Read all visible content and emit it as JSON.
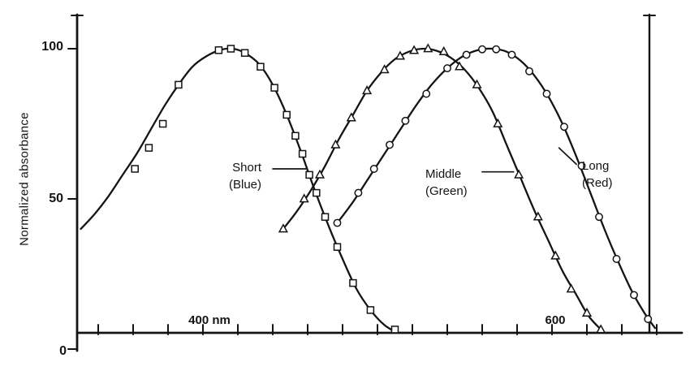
{
  "colors": {
    "ink": "#141414",
    "background": "#ffffff"
  },
  "chart_data": {
    "type": "line",
    "description": "Normalized absorbance spectra of three cone photopigments",
    "grid": false,
    "x_unit": "nm",
    "x_range": [
      330,
      668
    ],
    "y_range": [
      0,
      105
    ],
    "y_axis": {
      "label": "Normalized absorbance",
      "ticks": [
        {
          "v": 0,
          "label": "0"
        },
        {
          "v": 50,
          "label": "50"
        },
        {
          "v": 100,
          "label": "100"
        }
      ]
    },
    "x_axis": {
      "labels": [
        {
          "nm": 400,
          "label": "400 nm"
        },
        {
          "nm": 600,
          "label": "600"
        }
      ],
      "tick_nm": [
        340,
        360,
        380,
        400,
        420,
        440,
        460,
        480,
        500,
        520,
        540,
        560,
        580,
        600,
        620,
        640,
        660
      ]
    },
    "series": [
      {
        "id": "short",
        "name": "Short (Blue)",
        "marker": "square",
        "peak_nm": 420,
        "curve": [
          [
            330,
            40
          ],
          [
            338,
            45
          ],
          [
            346,
            51
          ],
          [
            354,
            58
          ],
          [
            362,
            65
          ],
          [
            370,
            73
          ],
          [
            378,
            81
          ],
          [
            386,
            88
          ],
          [
            394,
            94
          ],
          [
            402,
            97.5
          ],
          [
            410,
            99.6
          ],
          [
            417,
            100
          ],
          [
            424,
            98.6
          ],
          [
            432,
            95
          ],
          [
            440,
            88
          ],
          [
            448,
            78
          ],
          [
            456,
            66
          ],
          [
            464,
            53
          ],
          [
            472,
            41
          ],
          [
            480,
            30
          ],
          [
            488,
            20
          ],
          [
            496,
            13
          ],
          [
            504,
            8
          ],
          [
            511,
            5.5
          ]
        ],
        "points": [
          [
            361,
            60
          ],
          [
            369,
            67
          ],
          [
            377,
            75
          ],
          [
            386,
            88
          ],
          [
            409,
            99.5
          ],
          [
            416,
            100
          ],
          [
            424,
            98.6
          ],
          [
            433,
            94
          ],
          [
            441,
            87
          ],
          [
            448,
            78
          ],
          [
            453,
            71
          ],
          [
            457,
            65
          ],
          [
            461,
            58
          ],
          [
            465,
            52
          ],
          [
            470,
            44
          ],
          [
            477,
            34
          ],
          [
            486,
            22
          ],
          [
            496,
            13
          ],
          [
            510,
            6.5
          ]
        ]
      },
      {
        "id": "middle",
        "name": "Middle (Green)",
        "marker": "triangle",
        "peak_nm": 530,
        "curve": [
          [
            446,
            40
          ],
          [
            454,
            46
          ],
          [
            462,
            53
          ],
          [
            470,
            61
          ],
          [
            478,
            70
          ],
          [
            486,
            78
          ],
          [
            494,
            86
          ],
          [
            502,
            92
          ],
          [
            510,
            96.5
          ],
          [
            518,
            99
          ],
          [
            526,
            100
          ],
          [
            534,
            99.3
          ],
          [
            542,
            97
          ],
          [
            550,
            93
          ],
          [
            558,
            87
          ],
          [
            566,
            79
          ],
          [
            574,
            68
          ],
          [
            582,
            57
          ],
          [
            590,
            46
          ],
          [
            598,
            36
          ],
          [
            606,
            26
          ],
          [
            614,
            18
          ],
          [
            621,
            11
          ],
          [
            628,
            6.5
          ]
        ],
        "points": [
          [
            446,
            40
          ],
          [
            458,
            50
          ],
          [
            467,
            58
          ],
          [
            476,
            68
          ],
          [
            485,
            77
          ],
          [
            494,
            86
          ],
          [
            504,
            93
          ],
          [
            513,
            97.5
          ],
          [
            521,
            99.4
          ],
          [
            529,
            100
          ],
          [
            538,
            99
          ],
          [
            547,
            94
          ],
          [
            557,
            88
          ],
          [
            569,
            75
          ],
          [
            581,
            58
          ],
          [
            592,
            44
          ],
          [
            602,
            31
          ],
          [
            611,
            20
          ],
          [
            620,
            12
          ],
          [
            628,
            6.5
          ]
        ]
      },
      {
        "id": "long",
        "name": "Long (Red)",
        "marker": "circle",
        "peak_nm": 560,
        "curve": [
          [
            477,
            42
          ],
          [
            486,
            49
          ],
          [
            495,
            57
          ],
          [
            504,
            65
          ],
          [
            513,
            73
          ],
          [
            522,
            81
          ],
          [
            531,
            88
          ],
          [
            540,
            93.5
          ],
          [
            549,
            97.5
          ],
          [
            558,
            99.6
          ],
          [
            566,
            100
          ],
          [
            574,
            99
          ],
          [
            582,
            96
          ],
          [
            590,
            91
          ],
          [
            598,
            84
          ],
          [
            606,
            75
          ],
          [
            614,
            64
          ],
          [
            622,
            52
          ],
          [
            630,
            40
          ],
          [
            638,
            29
          ],
          [
            646,
            19
          ],
          [
            653,
            12
          ],
          [
            659,
            7
          ]
        ],
        "points": [
          [
            477,
            42
          ],
          [
            489,
            52
          ],
          [
            498,
            60
          ],
          [
            507,
            68
          ],
          [
            516,
            76
          ],
          [
            528,
            85
          ],
          [
            540,
            93.5
          ],
          [
            551,
            98
          ],
          [
            560,
            99.8
          ],
          [
            568,
            99.8
          ],
          [
            577,
            98
          ],
          [
            587,
            92.5
          ],
          [
            597,
            85
          ],
          [
            607,
            74
          ],
          [
            617,
            61
          ],
          [
            627,
            44
          ],
          [
            637,
            30
          ],
          [
            647,
            18
          ],
          [
            655,
            10
          ]
        ]
      }
    ],
    "annotations": [
      {
        "id": "short",
        "lines": [
          "Short",
          "(Blue)"
        ],
        "leader": [
          [
            440,
            60
          ],
          [
            459,
            60
          ]
        ]
      },
      {
        "id": "middle",
        "lines": [
          "Middle",
          "(Green)"
        ],
        "leader": [
          [
            560,
            59
          ],
          [
            578,
            59
          ]
        ]
      },
      {
        "id": "long",
        "lines": [
          "Long",
          "(Red)"
        ],
        "leader": [
          [
            614,
            61.5
          ],
          [
            604,
            67
          ]
        ]
      }
    ]
  }
}
